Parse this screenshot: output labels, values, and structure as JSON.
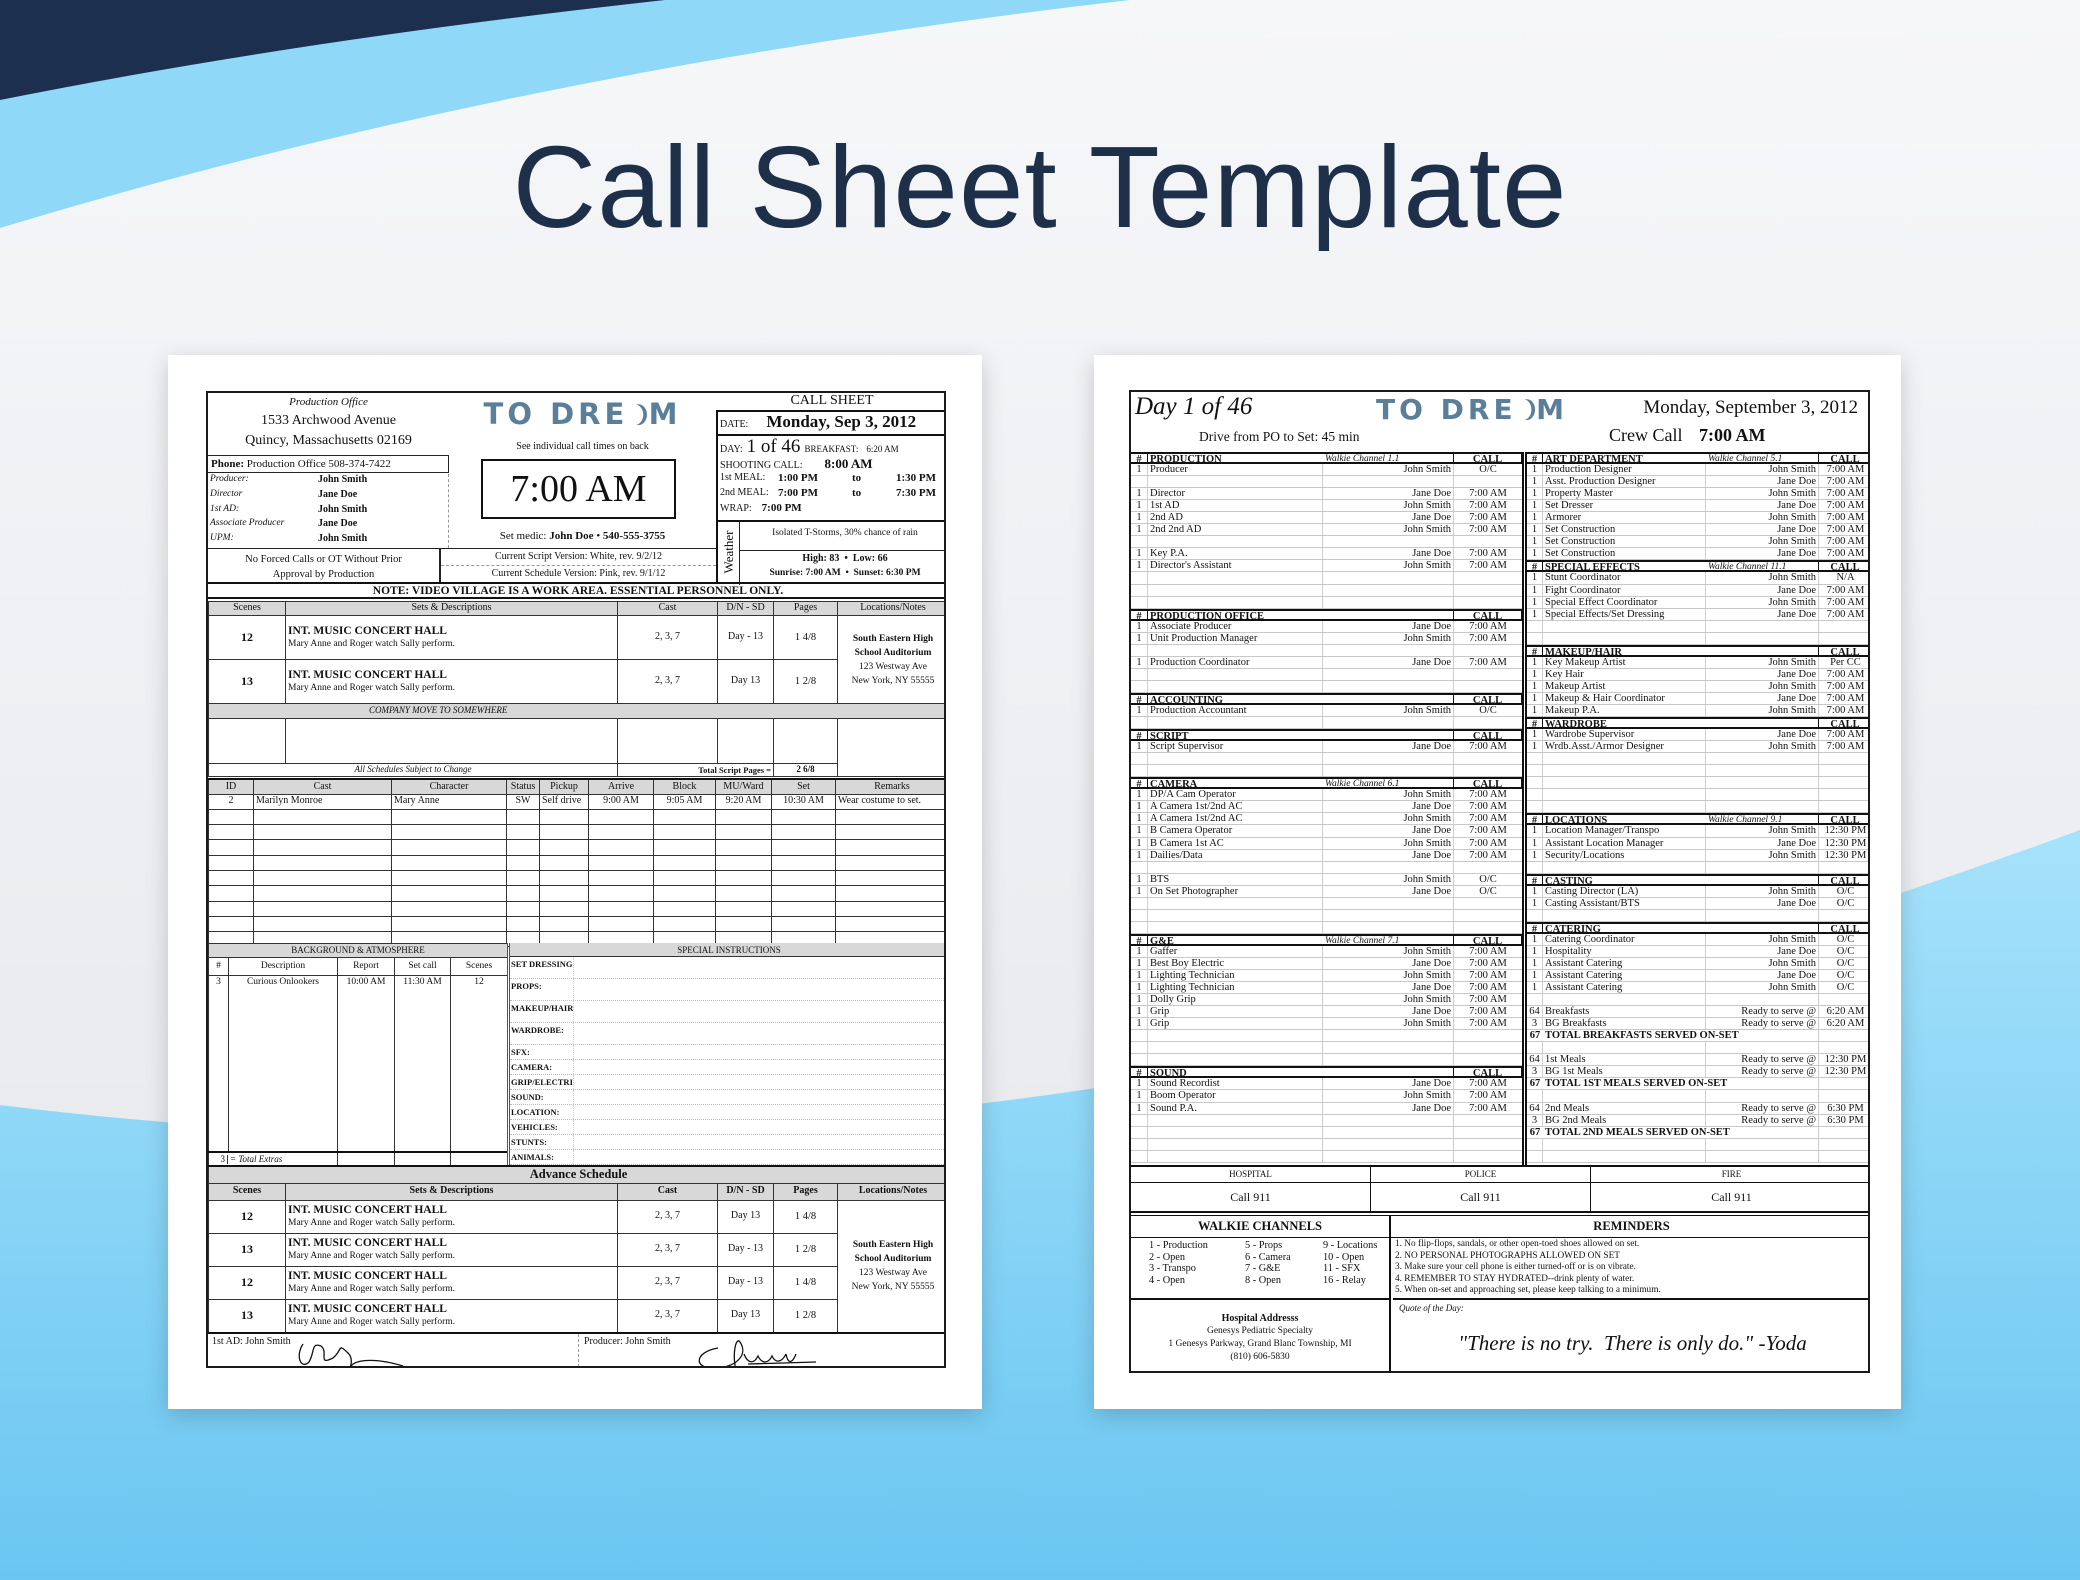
{
  "title": "Call Sheet Template",
  "colors": {
    "navy": "#1c2f4f",
    "sky_blue": "#8fd8f8",
    "title_text": "#1e2f4a",
    "logo": "#5b7f98",
    "header_gray": "#d8d8d8"
  },
  "logo_text": "TO DREAM",
  "sheet1": {
    "office": {
      "label": "Production Office",
      "address1": "1533 Archwood Avenue",
      "address2": "Quincy, Massachusetts  02169",
      "phone_label": "Phone:",
      "phone": "Production Office  508-374-7422"
    },
    "staff": [
      {
        "role": "Producer:",
        "name": "John Smith"
      },
      {
        "role": "Director",
        "name": "Jane Doe"
      },
      {
        "role": "1st AD:",
        "name": "John Smith"
      },
      {
        "role": "Associate Producer",
        "name": "Jane Doe"
      },
      {
        "role": "UPM:",
        "name": "John Smith"
      }
    ],
    "ot_note": [
      "No Forced Calls or OT Without Prior",
      "Approval by Production"
    ],
    "callback_note": "See individual call times on back",
    "crew_call": "7:00 AM",
    "medic_label": "Set medic:",
    "medic_name": "John Doe",
    "medic_phone": "540-555-3755",
    "script_version": "Current Script Version: White, rev. 9/2/12",
    "schedule_version": "Current Schedule Version: Pink, rev. 9/1/12",
    "call_sheet_title": "CALL SHEET",
    "date_label": "DATE:",
    "date": "Monday, Sep 3, 2012",
    "day_label": "DAY:",
    "day": "1 of 46",
    "breakfast_label": "BREAKFAST:",
    "breakfast": "6:20 AM",
    "shooting_call_label": "SHOOTING CALL:",
    "shooting_call": "8:00 AM",
    "to_label": "to",
    "meal1_label": "1st MEAL:",
    "meal1_start": "1:00 PM",
    "meal1_end": "1:30 PM",
    "meal2_label": "2nd MEAL:",
    "meal2_start": "7:00 PM",
    "meal2_end": "7:30 PM",
    "wrap_label": "WRAP:",
    "wrap": "7:00 PM",
    "weather_label": "Weather",
    "weather": "Isolated T-Storms, 30% chance of rain",
    "high_low": "High: 83  •  Low: 66",
    "sun": "Sunrise: 7:00 AM  •  Sunset: 6:30 PM",
    "notice": "NOTE: VIDEO VILLAGE IS A WORK AREA. ESSENTIAL PERSONNEL ONLY.",
    "scenes": {
      "headers": [
        "Scenes",
        "Sets & Descriptions",
        "Cast",
        "D/N - SD",
        "Pages",
        "Locations/Notes"
      ],
      "rows": [
        {
          "scene": "12",
          "set": "INT. MUSIC CONCERT HALL",
          "desc": "Mary Anne and Roger watch Sally perform.",
          "cast": "2, 3, 7",
          "dn": "Day - 13",
          "pages": "1 4/8"
        },
        {
          "scene": "13",
          "set": "INT. MUSIC CONCERT HALL",
          "desc": "Mary Anne and Roger watch Sally perform.",
          "cast": "2, 3, 7",
          "dn": "Day  13",
          "pages": "1 2/8"
        }
      ],
      "location": [
        "South Eastern High",
        "School Auditorium",
        "123 Westway Ave",
        "New York, NY 55555"
      ],
      "company_move": "COMPANY MOVE TO SOMEWHERE",
      "subject_to_change": "All Schedules Subject to Change",
      "total_pages_label": "Total Script Pages =",
      "total_pages": "2 6/8"
    },
    "cast": {
      "headers": [
        "ID",
        "Cast",
        "Character",
        "Status",
        "Pickup",
        "Arrive",
        "Block",
        "MU/Ward",
        "Set",
        "Remarks"
      ],
      "rows": [
        [
          "2",
          "Marilyn Monroe",
          "Mary Anne",
          "SW",
          "Self drive",
          "9:00 AM",
          "9:05 AM",
          "9:20 AM",
          "10:30 AM",
          "Wear costume to set."
        ]
      ]
    },
    "background": {
      "title": "BACKGROUND & ATMOSPHERE",
      "headers": [
        "#",
        "Description",
        "Report",
        "Set call",
        "Scenes"
      ],
      "rows": [
        [
          "3",
          "Curious Onlookers",
          "10:00 AM",
          "11:30 AM",
          "12"
        ]
      ],
      "total": "3",
      "total_label": "= Total Extras"
    },
    "special": {
      "title": "SPECIAL INSTRUCTIONS",
      "items": [
        "SET DRESSING:",
        "PROPS:",
        "MAKEUP/HAIR:",
        "WARDROBE:",
        "SFX:",
        "CAMERA:",
        "GRIP/ELECTRIC:",
        "SOUND:",
        "LOCATION:",
        "VEHICLES:",
        "STUNTS:",
        "ANIMALS:"
      ]
    },
    "advance": {
      "title": "Advance Schedule",
      "headers": [
        "Scenes",
        "Sets & Descriptions",
        "Cast",
        "D/N - SD",
        "Pages",
        "Locations/Notes"
      ],
      "rows": [
        {
          "scene": "12",
          "set": "INT. MUSIC CONCERT HALL",
          "desc": "Mary Anne and Roger watch Sally perform.",
          "cast": "2, 3, 7",
          "dn": "Day  13",
          "pages": "1 4/8"
        },
        {
          "scene": "13",
          "set": "INT. MUSIC CONCERT HALL",
          "desc": "Mary Anne and Roger watch Sally perform.",
          "cast": "2, 3, 7",
          "dn": "Day - 13",
          "pages": "1 2/8"
        },
        {
          "scene": "12",
          "set": "INT. MUSIC CONCERT HALL",
          "desc": "Mary Anne and Roger watch Sally perform.",
          "cast": "2, 3, 7",
          "dn": "Day - 13",
          "pages": "1 4/8"
        },
        {
          "scene": "13",
          "set": "INT. MUSIC CONCERT HALL",
          "desc": "Mary Anne and Roger watch Sally perform.",
          "cast": "2, 3, 7",
          "dn": "Day  13",
          "pages": "1 2/8"
        }
      ],
      "location": [
        "South Eastern High",
        "School Auditorium",
        "123 Westway Ave",
        "New York, NY 55555"
      ]
    },
    "signatures": {
      "first_ad": "1st AD:  John Smith",
      "producer": "Producer:  John Smith"
    }
  },
  "sheet2": {
    "day": "Day 1 of 46",
    "date": "Monday, September 3, 2012",
    "drive": "Drive from PO to Set: 45 min",
    "crew_call_label": "Crew Call",
    "crew_call": "7:00 AM",
    "hash_label": "#",
    "call_label": "CALL",
    "left": [
      {
        "title": "PRODUCTION",
        "walkie": "Walkie Channel 1.1",
        "rows": [
          [
            "1",
            "Producer",
            "John Smith",
            "O/C"
          ],
          null,
          [
            "1",
            "Director",
            "Jane Doe",
            "7:00 AM"
          ],
          [
            "1",
            "1st AD",
            "John Smith",
            "7:00 AM"
          ],
          [
            "1",
            "2nd AD",
            "Jane Doe",
            "7:00 AM"
          ],
          [
            "1",
            "2nd 2nd AD",
            "John Smith",
            "7:00 AM"
          ],
          null,
          [
            "1",
            "Key P.A.",
            "Jane Doe",
            "7:00 AM"
          ],
          [
            "1",
            "Director's Assistant",
            "John Smith",
            "7:00 AM"
          ],
          null,
          null,
          null
        ]
      },
      {
        "title": "PRODUCTION OFFICE",
        "walkie": "",
        "rows": [
          [
            "1",
            "Associate Producer",
            "Jane Doe",
            "7:00 AM"
          ],
          [
            "1",
            "Unit Production Manager",
            "John Smith",
            "7:00 AM"
          ],
          null,
          [
            "1",
            "Production Coordinator",
            "Jane Doe",
            "7:00 AM"
          ],
          null,
          null
        ]
      },
      {
        "title": "ACCOUNTING",
        "walkie": "",
        "rows": [
          [
            "1",
            "Production Accountant",
            "John Smith",
            "O/C"
          ],
          null
        ]
      },
      {
        "title": "SCRIPT",
        "walkie": "",
        "rows": [
          [
            "1",
            "Script Supervisor",
            "Jane Doe",
            "7:00 AM"
          ],
          null,
          null
        ]
      },
      {
        "title": "CAMERA",
        "walkie": "Walkie Channel 6.1",
        "rows": [
          [
            "1",
            "DP/A Cam Operator",
            "John Smith",
            "7:00 AM"
          ],
          [
            "1",
            "A Camera 1st/2nd AC",
            "Jane Doe",
            "7:00 AM"
          ],
          [
            "1",
            "A Camera 1st/2nd AC",
            "John Smith",
            "7:00 AM"
          ],
          [
            "1",
            "B Camera Operator",
            "Jane Doe",
            "7:00 AM"
          ],
          [
            "1",
            "B Camera 1st AC",
            "John Smith",
            "7:00 AM"
          ],
          [
            "1",
            "Dailies/Data",
            "Jane Doe",
            "7:00 AM"
          ],
          null,
          [
            "1",
            "BTS",
            "John Smith",
            "O/C"
          ],
          [
            "1",
            "On Set Photographer",
            "Jane Doe",
            "O/C"
          ],
          null,
          null,
          null
        ]
      },
      {
        "title": "G&E",
        "walkie": "Walkie Channel 7.1",
        "rows": [
          [
            "1",
            "Gaffer",
            "John Smith",
            "7:00 AM"
          ],
          [
            "1",
            "Best Boy Electric",
            "Jane Doe",
            "7:00 AM"
          ],
          [
            "1",
            "Lighting Technician",
            "John Smith",
            "7:00 AM"
          ],
          [
            "1",
            "Lighting Technician",
            "Jane Doe",
            "7:00 AM"
          ],
          [
            "1",
            "Dolly Grip",
            "John Smith",
            "7:00 AM"
          ],
          [
            "1",
            "Grip",
            "Jane Doe",
            "7:00 AM"
          ],
          [
            "1",
            "Grip",
            "John Smith",
            "7:00 AM"
          ],
          null,
          null,
          null
        ]
      },
      {
        "title": "SOUND",
        "walkie": "",
        "rows": [
          [
            "1",
            "Sound Recordist",
            "Jane Doe",
            "7:00 AM"
          ],
          [
            "1",
            "Boom Operator",
            "John Smith",
            "7:00 AM"
          ],
          [
            "1",
            "Sound P.A.",
            "Jane Doe",
            "7:00 AM"
          ],
          null,
          null,
          null,
          null
        ]
      }
    ],
    "right": [
      {
        "title": "ART DEPARTMENT",
        "walkie": "Walkie Channel 5.1",
        "rows": [
          [
            "1",
            "Production Designer",
            "John Smith",
            "7:00 AM"
          ],
          [
            "1",
            "Asst. Production Designer",
            "Jane Doe",
            "7:00 AM"
          ],
          [
            "1",
            "Property Master",
            "John Smith",
            "7:00 AM"
          ],
          [
            "1",
            "Set Dresser",
            "Jane Doe",
            "7:00 AM"
          ],
          [
            "1",
            "Armorer",
            "John Smith",
            "7:00 AM"
          ],
          [
            "1",
            "Set Construction",
            "Jane Doe",
            "7:00 AM"
          ],
          [
            "1",
            "Set Construction",
            "John Smith",
            "7:00 AM"
          ],
          [
            "1",
            "Set Construction",
            "Jane Doe",
            "7:00 AM"
          ]
        ]
      },
      {
        "title": "SPECIAL EFFECTS",
        "walkie": "Walkie Channel 11.1",
        "rows": [
          [
            "1",
            "Stunt Coordinator",
            "John Smith",
            "N/A"
          ],
          [
            "1",
            "Fight Coordinator",
            "Jane Doe",
            "7:00 AM"
          ],
          [
            "1",
            "Special Effect Coordinator",
            "John Smith",
            "7:00 AM"
          ],
          [
            "1",
            "Special Effects/Set Dressing",
            "Jane Doe",
            "7:00 AM"
          ],
          null,
          null
        ]
      },
      {
        "title": "MAKEUP/HAIR",
        "walkie": "",
        "rows": [
          [
            "1",
            "Key Makeup Artist",
            "John Smith",
            "Per CC"
          ],
          [
            "1",
            "Key Hair",
            "Jane Doe",
            "7:00 AM"
          ],
          [
            "1",
            "Makeup Artist",
            "John Smith",
            "7:00 AM"
          ],
          [
            "1",
            "Makeup & Hair Coordinator",
            "Jane Doe",
            "7:00 AM"
          ],
          [
            "1",
            "Makeup P.A.",
            "John Smith",
            "7:00 AM"
          ]
        ]
      },
      {
        "title": "WARDROBE",
        "walkie": "",
        "rows": [
          [
            "1",
            "Wardrobe Supervisor",
            "Jane Doe",
            "7:00 AM"
          ],
          [
            "1",
            "Wrdb.Asst./Armor Designer",
            "John Smith",
            "7:00 AM"
          ],
          null,
          null,
          null,
          null,
          null
        ]
      },
      {
        "title": "LOCATIONS",
        "walkie": "Walkie Channel 9.1",
        "rows": [
          [
            "1",
            "Location Manager/Transpo",
            "John Smith",
            "12:30 PM"
          ],
          [
            "1",
            "Assistant Location Manager",
            "Jane Doe",
            "12:30 PM"
          ],
          [
            "1",
            "Security/Locations",
            "John Smith",
            "12:30 PM"
          ],
          null
        ]
      },
      {
        "title": "CASTING",
        "walkie": "",
        "rows": [
          [
            "1",
            "Casting Director (LA)",
            "John Smith",
            "O/C"
          ],
          [
            "1",
            "Casting Assistant/BTS",
            "Jane Doe",
            "O/C"
          ],
          null
        ]
      },
      {
        "title": "CATERING",
        "walkie": "",
        "rows": [
          [
            "1",
            "Catering Coordinator",
            "John Smith",
            "O/C"
          ],
          [
            "1",
            "Hospitality",
            "Jane Doe",
            "O/C"
          ],
          [
            "1",
            "Assistant Catering",
            "John Smith",
            "O/C"
          ],
          [
            "1",
            "Assistant Catering",
            "Jane Doe",
            "O/C"
          ],
          [
            "1",
            "Assistant Catering",
            "John Smith",
            "O/C"
          ],
          null,
          [
            "64",
            "Breakfasts",
            "Ready to serve @",
            "6:20 AM"
          ],
          [
            "3",
            "BG Breakfasts",
            "Ready to serve @",
            "6:20 AM"
          ],
          [
            "67",
            "TOTAL BREAKFASTS SERVED ON-SET"
          ],
          null,
          [
            "64",
            "1st Meals",
            "Ready to serve @",
            "12:30 PM"
          ],
          [
            "3",
            "BG 1st Meals",
            "Ready to serve @",
            "12:30 PM"
          ],
          [
            "67",
            "TOTAL 1ST MEALS SERVED ON-SET"
          ],
          null,
          [
            "64",
            "2nd Meals",
            "Ready to serve @",
            "6:30 PM"
          ],
          [
            "3",
            "BG 2nd Meals",
            "Ready to serve @",
            "6:30 PM"
          ],
          [
            "67",
            "TOTAL 2ND MEALS SERVED ON-SET"
          ],
          null,
          null
        ]
      }
    ],
    "emergency": [
      {
        "label": "HOSPITAL",
        "value": "Call 911"
      },
      {
        "label": "POLICE",
        "value": "Call 911"
      },
      {
        "label": "FIRE",
        "value": "Call 911"
      }
    ],
    "walkie_title": "WALKIE CHANNELS",
    "walkie_columns": [
      [
        "1 - Production",
        "2 - Open",
        "3 - Transpo",
        "4 - Open"
      ],
      [
        "5 - Props",
        "6 - Camera",
        "7 - G&E",
        "8 - Open"
      ],
      [
        "9 - Locations",
        "10 - Open",
        "11 - SFX",
        "16 - Relay"
      ]
    ],
    "reminders_title": "REMINDERS",
    "reminders": [
      "1. No flip-flops, sandals, or other open-toed shoes allowed on set.",
      "2. NO PERSONAL PHOTOGRAPHS ALLOWED ON SET",
      "3. Make sure your cell phone is either turned-off or is on vibrate.",
      "4. REMEMBER TO STAY HYDRATED--drink plenty of water.",
      "5. When on-set and approaching set, please keep talking to a minimum."
    ],
    "hospital_title": "Hospital Addresss",
    "hospital_lines": [
      "Genesys Pediatric Specialty",
      "1 Genesys Parkway, Grand Blanc Township, MI",
      "(810) 606-5830"
    ],
    "quote_label": "Quote of the Day:",
    "quote": "\"There is no try.  There is only do.\" -Yoda"
  }
}
